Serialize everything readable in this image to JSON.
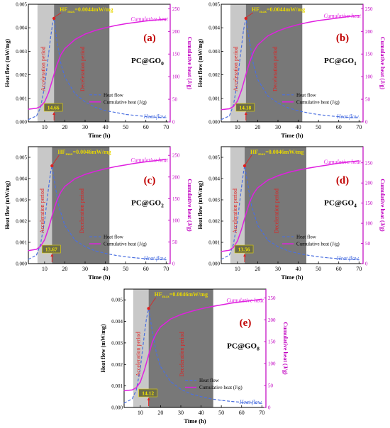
{
  "chart_data": [
    {
      "type": "line",
      "panel_label": "(a)",
      "sample": "PC@GO",
      "sample_sub": "0",
      "xlabel": "Time (h)",
      "ylabel_left": "Heat flow (mW/mg)",
      "ylabel_right": "Cumulative heat (J/g)",
      "xlim": [
        2,
        72
      ],
      "ylim_left": [
        0,
        0.005
      ],
      "ylim_right": [
        0,
        260
      ],
      "x_ticks": [
        10,
        20,
        30,
        40,
        50,
        60,
        70
      ],
      "y_left_ticks": [
        "0.000",
        "0.001",
        "0.002",
        "0.003",
        "0.004",
        "0.005"
      ],
      "y_right_ticks": [
        "0",
        "50",
        "100",
        "150",
        "200",
        "250"
      ],
      "acceleration_period": [
        6.5,
        14.66
      ],
      "deceleration_period": [
        14.66,
        42
      ],
      "acceleration_label": "Acceleration period",
      "deceleration_label": "Deceleration period",
      "peak_time_label": "14.66",
      "hf_max_prefix": "HF",
      "hf_max_sub": "max",
      "hf_max_value": "=0.0044mW/mg",
      "annotation_heat_flow": "Heat flow",
      "annotation_cumulative": "Cumulative heat",
      "legend": [
        "Heat flow",
        "Cumulative heat (J/g)"
      ],
      "legend_placement": "bottom-right",
      "series": [
        {
          "name": "Heat flow",
          "axis": "left",
          "color": "#4a6fe0",
          "style": "dashed",
          "x": [
            2,
            6,
            8,
            10,
            11,
            12,
            13,
            14,
            14.66,
            16,
            18,
            20,
            25,
            30,
            35,
            40,
            45,
            50,
            55,
            60,
            65,
            70
          ],
          "y": [
            0.0001,
            0.00025,
            0.0006,
            0.0015,
            0.0022,
            0.0029,
            0.0036,
            0.0042,
            0.0044,
            0.0035,
            0.0025,
            0.0019,
            0.0012,
            0.00085,
            0.00062,
            0.00048,
            0.0004,
            0.00032,
            0.00027,
            0.00023,
            0.0002,
            0.00018
          ]
        },
        {
          "name": "Cumulative heat (J/g)",
          "axis": "right",
          "color": "#e020e0",
          "style": "solid",
          "x": [
            2,
            6,
            8,
            10,
            12,
            14,
            16,
            18,
            20,
            25,
            30,
            35,
            40,
            45,
            50,
            55,
            60,
            65,
            70
          ],
          "y": [
            28,
            30,
            34,
            44,
            65,
            95,
            125,
            148,
            162,
            182,
            194,
            202,
            208,
            213,
            217,
            220,
            223,
            225,
            227
          ]
        }
      ]
    },
    {
      "type": "line",
      "panel_label": "(b)",
      "sample": "PC@GO",
      "sample_sub": "1",
      "xlabel": "Time (h)",
      "ylabel_left": "Heat flow (mW/mg)",
      "ylabel_right": "Cumulative heat (J/g)",
      "xlim": [
        2,
        72
      ],
      "ylim_left": [
        0,
        0.005
      ],
      "ylim_right": [
        0,
        260
      ],
      "x_ticks": [
        10,
        20,
        30,
        40,
        50,
        60,
        70
      ],
      "y_left_ticks": [
        "0.000",
        "0.001",
        "0.002",
        "0.003",
        "0.004",
        "0.005"
      ],
      "y_right_ticks": [
        "0",
        "50",
        "100",
        "150",
        "200",
        "250"
      ],
      "acceleration_period": [
        6.5,
        14.18
      ],
      "deceleration_period": [
        14.18,
        42
      ],
      "acceleration_label": "Acceleration period",
      "deceleration_label": "Deceleration period",
      "peak_time_label": "14.18",
      "hf_max_prefix": "HF",
      "hf_max_sub": "max",
      "hf_max_value": "=0.0044mW/mg",
      "annotation_heat_flow": "Heat flow",
      "annotation_cumulative": "Cumulative heat",
      "legend": [
        "Heat flow",
        "Cumulative heat (J/g)"
      ],
      "legend_placement": "bottom-right",
      "series": [
        {
          "name": "Heat flow",
          "axis": "left",
          "color": "#4a6fe0",
          "style": "dashed",
          "x": [
            2,
            6,
            8,
            10,
            11,
            12,
            13,
            14.18,
            16,
            18,
            20,
            25,
            30,
            35,
            40,
            45,
            50,
            55,
            60,
            65,
            70
          ],
          "y": [
            0.0001,
            0.00025,
            0.0007,
            0.0017,
            0.0025,
            0.0032,
            0.0039,
            0.0044,
            0.0034,
            0.0024,
            0.0018,
            0.0011,
            0.0008,
            0.0006,
            0.00047,
            0.00038,
            0.00031,
            0.00026,
            0.00022,
            0.00019,
            0.00017
          ]
        },
        {
          "name": "Cumulative heat (J/g)",
          "axis": "right",
          "color": "#e020e0",
          "style": "solid",
          "x": [
            2,
            6,
            8,
            10,
            12,
            14,
            16,
            18,
            20,
            25,
            30,
            35,
            40,
            45,
            50,
            55,
            60,
            65,
            70
          ],
          "y": [
            27,
            29,
            34,
            46,
            70,
            102,
            132,
            155,
            170,
            190,
            201,
            209,
            215,
            220,
            224,
            227,
            230,
            233,
            235
          ]
        }
      ]
    },
    {
      "type": "line",
      "panel_label": "(c)",
      "sample": "PC@GO",
      "sample_sub": "2",
      "xlabel": "Time (h)",
      "ylabel_left": "Heat flow (mW/mg)",
      "ylabel_right": "Cumulative heat (J/g)",
      "xlim": [
        2,
        72
      ],
      "ylim_left": [
        0,
        0.0055
      ],
      "ylim_right": [
        0,
        270
      ],
      "x_ticks": [
        10,
        20,
        30,
        40,
        50,
        60,
        70
      ],
      "y_left_ticks": [
        "0.000",
        "0.001",
        "0.002",
        "0.003",
        "0.004",
        "0.005"
      ],
      "y_right_ticks": [
        "0",
        "50",
        "100",
        "150",
        "200",
        "250"
      ],
      "acceleration_period": [
        6.5,
        13.67
      ],
      "deceleration_period": [
        13.67,
        42
      ],
      "acceleration_label": "Acceleration period",
      "deceleration_label": "Deceleration period",
      "peak_time_label": "13.67",
      "hf_max_prefix": "HF",
      "hf_max_sub": "max",
      "hf_max_value": "=0.0046mW/mg",
      "annotation_heat_flow": "Heat flow",
      "annotation_cumulative": "Cumulative heat",
      "legend": [
        "Heat flow",
        "Cumulative heat (J/g)"
      ],
      "legend_placement": "bottom-right",
      "series": [
        {
          "name": "Heat flow",
          "axis": "left",
          "color": "#4a6fe0",
          "style": "dashed",
          "x": [
            2,
            6,
            8,
            10,
            11,
            12,
            13,
            13.67,
            15,
            17,
            20,
            25,
            30,
            35,
            40,
            45,
            50,
            55,
            60,
            65,
            70
          ],
          "y": [
            0.0002,
            0.0004,
            0.0009,
            0.002,
            0.0028,
            0.0036,
            0.0043,
            0.0046,
            0.0038,
            0.0027,
            0.0018,
            0.0011,
            0.0008,
            0.0006,
            0.00048,
            0.00039,
            0.00032,
            0.00027,
            0.00023,
            0.0002,
            0.00018
          ]
        },
        {
          "name": "Cumulative heat (J/g)",
          "axis": "right",
          "color": "#e020e0",
          "style": "solid",
          "x": [
            2,
            6,
            8,
            10,
            12,
            14,
            16,
            18,
            20,
            25,
            30,
            35,
            40,
            45,
            50,
            55,
            60,
            65,
            70
          ],
          "y": [
            30,
            33,
            40,
            55,
            82,
            115,
            145,
            165,
            178,
            196,
            206,
            213,
            219,
            224,
            228,
            232,
            235,
            238,
            241
          ]
        }
      ]
    },
    {
      "type": "line",
      "panel_label": "(d)",
      "sample": "PC@GO",
      "sample_sub": "4",
      "xlabel": "Time (h)",
      "ylabel_left": "Heat flow (mW/mg)",
      "ylabel_right": "Cumulative heat (J/g)",
      "xlim": [
        2,
        72
      ],
      "ylim_left": [
        0,
        0.0055
      ],
      "ylim_right": [
        0,
        290
      ],
      "x_ticks": [
        10,
        20,
        30,
        40,
        50,
        60,
        70
      ],
      "y_left_ticks": [
        "0.000",
        "0.001",
        "0.002",
        "0.003",
        "0.004",
        "0.005"
      ],
      "y_right_ticks": [
        "0",
        "50",
        "100",
        "150",
        "200",
        "250"
      ],
      "acceleration_period": [
        6.5,
        13.56
      ],
      "deceleration_period": [
        13.56,
        44
      ],
      "acceleration_label": "Acceleration period",
      "deceleration_label": "Deceleration period",
      "peak_time_label": "13.56",
      "hf_max_prefix": "HF",
      "hf_max_sub": "max",
      "hf_max_value": "=0.0046mW/mg",
      "annotation_heat_flow": "Heat flow",
      "annotation_cumulative": "Cumulative heat",
      "legend": [
        "Heat flow",
        "Cumulative heat (J/g)"
      ],
      "legend_placement": "bottom-right",
      "series": [
        {
          "name": "Heat flow",
          "axis": "left",
          "color": "#4a6fe0",
          "style": "dashed",
          "x": [
            2,
            6,
            8,
            10,
            11,
            12,
            13,
            13.56,
            15,
            17,
            20,
            25,
            30,
            35,
            40,
            45,
            50,
            55,
            60,
            65,
            70
          ],
          "y": [
            0.0002,
            0.0004,
            0.0009,
            0.002,
            0.0028,
            0.0036,
            0.0043,
            0.0046,
            0.0038,
            0.0027,
            0.0018,
            0.0011,
            0.0008,
            0.0006,
            0.00048,
            0.00039,
            0.00032,
            0.00027,
            0.00023,
            0.0002,
            0.00018
          ]
        },
        {
          "name": "Cumulative heat (J/g)",
          "axis": "right",
          "color": "#e020e0",
          "style": "solid",
          "x": [
            2,
            6,
            8,
            10,
            12,
            14,
            16,
            18,
            20,
            25,
            30,
            35,
            40,
            45,
            50,
            55,
            60,
            65,
            70
          ],
          "y": [
            30,
            33,
            40,
            56,
            85,
            120,
            152,
            174,
            188,
            207,
            218,
            226,
            232,
            237,
            241,
            245,
            249,
            252,
            255
          ]
        }
      ]
    },
    {
      "type": "line",
      "panel_label": "(e)",
      "sample": "PC@GO",
      "sample_sub": "8",
      "xlabel": "Time (h)",
      "ylabel_left": "Heat flow (mW/mg)",
      "ylabel_right": "Cumulative heat (J/g)",
      "xlim": [
        2,
        72
      ],
      "ylim_left": [
        0,
        0.0055
      ],
      "ylim_right": [
        0,
        270
      ],
      "x_ticks": [
        10,
        20,
        30,
        40,
        50,
        60,
        70
      ],
      "y_left_ticks": [
        "0.000",
        "0.001",
        "0.002",
        "0.003",
        "0.004",
        "0.005"
      ],
      "y_right_ticks": [
        "0",
        "50",
        "100",
        "150",
        "200",
        "250"
      ],
      "acceleration_period": [
        6.5,
        14.12
      ],
      "deceleration_period": [
        14.12,
        46
      ],
      "acceleration_label": "Acceleration period",
      "deceleration_label": "Deceleration period",
      "peak_time_label": "14.12",
      "hf_max_prefix": "HF",
      "hf_max_sub": "max",
      "hf_max_value": "=0.0046mW/mg",
      "annotation_heat_flow": "Heat flow",
      "annotation_cumulative": "Cumulative heat",
      "legend": [
        "Heat flow",
        "Cumulative heat (J/g)"
      ],
      "legend_placement": "bottom-right",
      "series": [
        {
          "name": "Heat flow",
          "axis": "left",
          "color": "#4a6fe0",
          "style": "dashed",
          "x": [
            2,
            6,
            8,
            10,
            11,
            12,
            13,
            14.12,
            16,
            18,
            20,
            25,
            30,
            35,
            40,
            45,
            50,
            55,
            60,
            65,
            70
          ],
          "y": [
            0.0002,
            0.0004,
            0.0008,
            0.0018,
            0.0026,
            0.0034,
            0.0041,
            0.0046,
            0.0035,
            0.0025,
            0.0019,
            0.0012,
            0.00085,
            0.00063,
            0.0005,
            0.0004,
            0.00033,
            0.00028,
            0.00024,
            0.00021,
            0.00019
          ]
        },
        {
          "name": "Cumulative heat (J/g)",
          "axis": "right",
          "color": "#e020e0",
          "style": "solid",
          "x": [
            2,
            6,
            8,
            10,
            12,
            14,
            16,
            18,
            20,
            25,
            30,
            35,
            40,
            45,
            50,
            55,
            60,
            65,
            70
          ],
          "y": [
            38,
            40,
            45,
            58,
            85,
            118,
            150,
            170,
            184,
            202,
            212,
            219,
            225,
            230,
            234,
            238,
            241,
            244,
            247
          ]
        }
      ]
    }
  ]
}
